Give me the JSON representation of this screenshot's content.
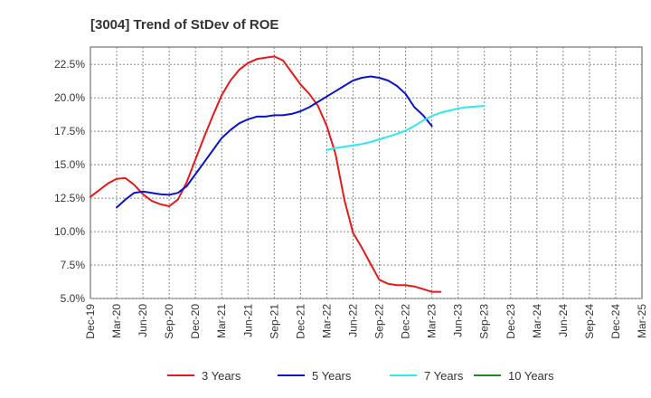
{
  "chart_data": {
    "type": "line",
    "title": "[3004]  Trend of StDev of ROE",
    "xlabel": "",
    "ylabel": "",
    "x_ticks": [
      "Dec-19",
      "Mar-20",
      "Jun-20",
      "Sep-20",
      "Dec-20",
      "Mar-21",
      "Jun-21",
      "Sep-21",
      "Dec-21",
      "Mar-22",
      "Jun-22",
      "Sep-22",
      "Dec-22",
      "Mar-23",
      "Jun-23",
      "Sep-23",
      "Dec-23",
      "Mar-24",
      "Jun-24",
      "Sep-24",
      "Dec-24",
      "Mar-25"
    ],
    "y_ticks": [
      "5.0%",
      "7.5%",
      "10.0%",
      "12.5%",
      "15.0%",
      "17.5%",
      "20.0%",
      "22.5%"
    ],
    "ylim": [
      5.0,
      23.8
    ],
    "grid": true,
    "legend_position": "bottom",
    "series": [
      {
        "name": "3 Years",
        "color": "#e31a1c",
        "points": [
          [
            0,
            12.6
          ],
          [
            1,
            13.1
          ],
          [
            2,
            13.6
          ],
          [
            3,
            13.95
          ],
          [
            4,
            14.0
          ],
          [
            5,
            13.5
          ],
          [
            6,
            12.8
          ],
          [
            7,
            12.3
          ],
          [
            8,
            12.05
          ],
          [
            9,
            11.9
          ],
          [
            10,
            12.4
          ],
          [
            11,
            13.7
          ],
          [
            12,
            15.4
          ],
          [
            13,
            17.1
          ],
          [
            14,
            18.7
          ],
          [
            15,
            20.2
          ],
          [
            16,
            21.3
          ],
          [
            17,
            22.1
          ],
          [
            18,
            22.6
          ],
          [
            19,
            22.9
          ],
          [
            20,
            23.0
          ],
          [
            21,
            23.1
          ],
          [
            22,
            22.8
          ],
          [
            23,
            21.9
          ],
          [
            24,
            21.0
          ],
          [
            25,
            20.3
          ],
          [
            26,
            19.4
          ],
          [
            27,
            17.9
          ],
          [
            28,
            15.8
          ],
          [
            29,
            12.4
          ],
          [
            30,
            9.9
          ],
          [
            31,
            8.8
          ],
          [
            32,
            7.6
          ],
          [
            33,
            6.4
          ],
          [
            34,
            6.1
          ],
          [
            35,
            6.0
          ],
          [
            36,
            6.0
          ],
          [
            37,
            5.9
          ],
          [
            38,
            5.7
          ],
          [
            39,
            5.5
          ],
          [
            40,
            5.5
          ]
        ]
      },
      {
        "name": "5 Years",
        "color": "#0a14c4",
        "points": [
          [
            3,
            11.8
          ],
          [
            4,
            12.4
          ],
          [
            5,
            12.9
          ],
          [
            6,
            13.0
          ],
          [
            7,
            12.9
          ],
          [
            8,
            12.8
          ],
          [
            9,
            12.75
          ],
          [
            10,
            12.9
          ],
          [
            11,
            13.4
          ],
          [
            12,
            14.3
          ],
          [
            13,
            15.2
          ],
          [
            14,
            16.1
          ],
          [
            15,
            17.0
          ],
          [
            16,
            17.6
          ],
          [
            17,
            18.1
          ],
          [
            18,
            18.4
          ],
          [
            19,
            18.6
          ],
          [
            20,
            18.6
          ],
          [
            21,
            18.7
          ],
          [
            22,
            18.7
          ],
          [
            23,
            18.8
          ],
          [
            24,
            19.0
          ],
          [
            25,
            19.3
          ],
          [
            26,
            19.7
          ],
          [
            27,
            20.1
          ],
          [
            28,
            20.5
          ],
          [
            29,
            20.9
          ],
          [
            30,
            21.3
          ],
          [
            31,
            21.5
          ],
          [
            32,
            21.6
          ],
          [
            33,
            21.5
          ],
          [
            34,
            21.3
          ],
          [
            35,
            20.9
          ],
          [
            36,
            20.3
          ],
          [
            37,
            19.3
          ],
          [
            38,
            18.7
          ],
          [
            39,
            17.9
          ]
        ]
      },
      {
        "name": "7 Years",
        "color": "#2ee8f0",
        "points": [
          [
            27,
            16.1
          ],
          [
            28,
            16.25
          ],
          [
            29,
            16.35
          ],
          [
            30,
            16.45
          ],
          [
            31,
            16.55
          ],
          [
            32,
            16.7
          ],
          [
            33,
            16.9
          ],
          [
            34,
            17.1
          ],
          [
            35,
            17.3
          ],
          [
            36,
            17.55
          ],
          [
            37,
            17.9
          ],
          [
            38,
            18.3
          ],
          [
            39,
            18.65
          ],
          [
            40,
            18.9
          ],
          [
            41,
            19.05
          ],
          [
            42,
            19.2
          ],
          [
            43,
            19.3
          ],
          [
            44,
            19.35
          ],
          [
            45,
            19.4
          ]
        ]
      },
      {
        "name": "10 Years",
        "color": "#1f8a1f",
        "points": []
      }
    ]
  }
}
